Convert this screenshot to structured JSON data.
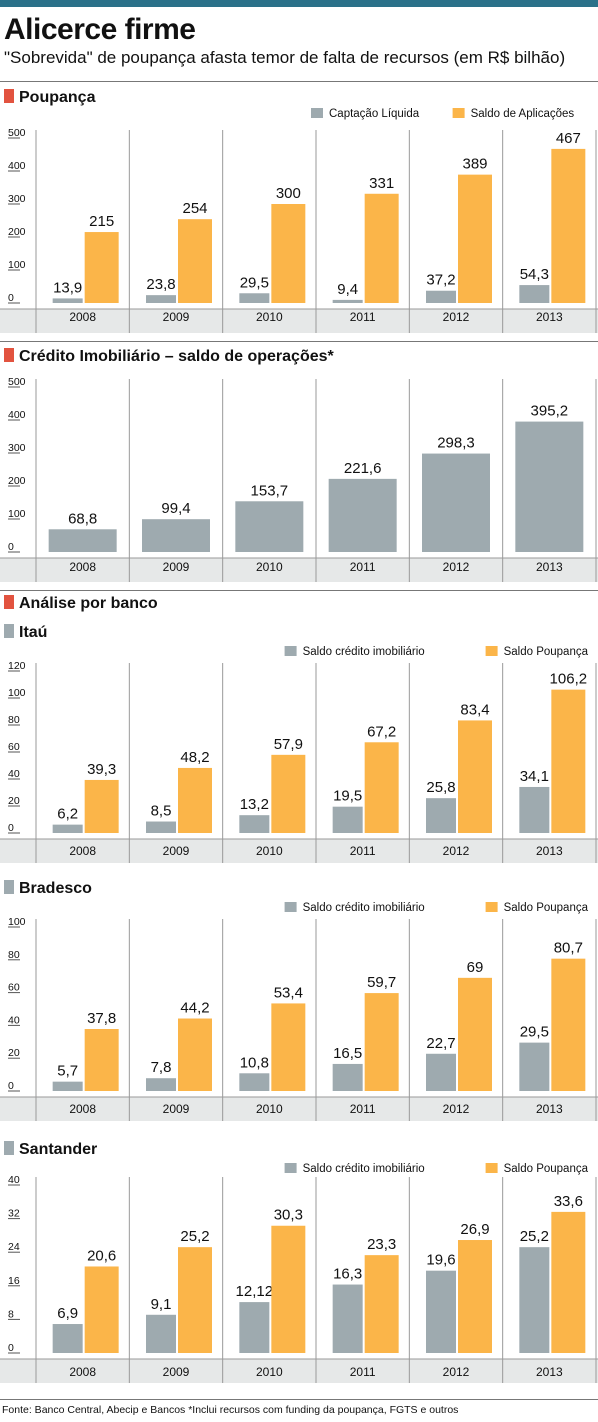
{
  "header": {
    "title": "Alicerce firme",
    "subtitle": "\"Sobrevida\" de poupança afasta temor de falta de recursos (em R$ bilhão)"
  },
  "sections": {
    "poupanca": "Poupança",
    "credito": "Crédito Imobiliário – saldo de operações*",
    "analise": "Análise por banco",
    "itau": "Itaú",
    "bradesco": "Bradesco",
    "santander": "Santander"
  },
  "colors": {
    "gray_series": "#9eaaaf",
    "orange_series": "#fbb549",
    "section_marker": "#e2533f",
    "top_bar": "#2b7189",
    "axis_band": "#e6e8e8"
  },
  "footer": "Fonte: Banco Central, Abecip e Bancos *Inclui recursos com funding da poupança, FGTS e outros",
  "chart_data": [
    {
      "id": "poupanca",
      "type": "bar",
      "categories": [
        "2008",
        "2009",
        "2010",
        "2011",
        "2012",
        "2013"
      ],
      "yticks": [
        0,
        100,
        200,
        300,
        400,
        500
      ],
      "ylim": [
        0,
        500
      ],
      "legend_position": "top-right",
      "series": [
        {
          "name": "Captação Líquida",
          "color": "#9eaaaf",
          "values": [
            13.9,
            23.8,
            29.5,
            9.4,
            37.2,
            54.3
          ],
          "labels": [
            "13,9",
            "23,8",
            "29,5",
            "9,4",
            "37,2",
            "54,3"
          ]
        },
        {
          "name": "Saldo de Aplicações",
          "color": "#fbb549",
          "values": [
            215,
            254,
            300,
            331,
            389,
            467
          ],
          "labels": [
            "215",
            "254",
            "300",
            "331",
            "389",
            "467"
          ]
        }
      ]
    },
    {
      "id": "credito",
      "type": "bar",
      "categories": [
        "2008",
        "2009",
        "2010",
        "2011",
        "2012",
        "2013"
      ],
      "yticks": [
        0,
        100,
        200,
        300,
        400,
        500
      ],
      "ylim": [
        0,
        500
      ],
      "series": [
        {
          "color": "#9eaaaf",
          "values": [
            68.8,
            99.4,
            153.7,
            221.6,
            298.3,
            395.2
          ],
          "labels": [
            "68,8",
            "99,4",
            "153,7",
            "221,6",
            "298,3",
            "395,2"
          ]
        }
      ]
    },
    {
      "id": "itau",
      "type": "bar",
      "categories": [
        "2008",
        "2009",
        "2010",
        "2011",
        "2012",
        "2013"
      ],
      "yticks": [
        0,
        20,
        40,
        60,
        80,
        100,
        120
      ],
      "ylim": [
        0,
        120
      ],
      "legend_position": "top-right",
      "series": [
        {
          "name": "Saldo crédito imobiliário",
          "color": "#9eaaaf",
          "values": [
            6.2,
            8.5,
            13.2,
            19.5,
            25.8,
            34.1
          ],
          "labels": [
            "6,2",
            "8,5",
            "13,2",
            "19,5",
            "25,8",
            "34,1"
          ]
        },
        {
          "name": "Saldo Poupança",
          "color": "#fbb549",
          "values": [
            39.3,
            48.2,
            57.9,
            67.2,
            83.4,
            106.2
          ],
          "labels": [
            "39,3",
            "48,2",
            "57,9",
            "67,2",
            "83,4",
            "106,2"
          ]
        }
      ]
    },
    {
      "id": "bradesco",
      "type": "bar",
      "categories": [
        "2008",
        "2009",
        "2010",
        "2011",
        "2012",
        "2013"
      ],
      "yticks": [
        0,
        20,
        40,
        60,
        80,
        100
      ],
      "ylim": [
        0,
        100
      ],
      "legend_position": "top-right",
      "series": [
        {
          "name": "Saldo crédito imobiliário",
          "color": "#9eaaaf",
          "values": [
            5.7,
            7.8,
            10.8,
            16.5,
            22.7,
            29.5
          ],
          "labels": [
            "5,7",
            "7,8",
            "10,8",
            "16,5",
            "22,7",
            "29,5"
          ]
        },
        {
          "name": "Saldo Poupança",
          "color": "#fbb549",
          "values": [
            37.8,
            44.2,
            53.4,
            59.7,
            69,
            80.7
          ],
          "labels": [
            "37,8",
            "44,2",
            "53,4",
            "59,7",
            "69",
            "80,7"
          ]
        }
      ]
    },
    {
      "id": "santander",
      "type": "bar",
      "categories": [
        "2008",
        "2009",
        "2010",
        "2011",
        "2012",
        "2013"
      ],
      "yticks": [
        0,
        8,
        16,
        24,
        32,
        40
      ],
      "ylim": [
        0,
        40
      ],
      "legend_position": "top-right",
      "series": [
        {
          "name": "Saldo crédito imobiliário",
          "color": "#9eaaaf",
          "values": [
            6.9,
            9.1,
            12.12,
            16.3,
            19.6,
            25.2
          ],
          "labels": [
            "6,9",
            "9,1",
            "12,12",
            "16,3",
            "19,6",
            "25,2"
          ]
        },
        {
          "name": "Saldo Poupança",
          "color": "#fbb549",
          "values": [
            20.6,
            25.2,
            30.3,
            23.3,
            26.9,
            33.6
          ],
          "labels": [
            "20,6",
            "25,2",
            "30,3",
            "23,3",
            "26,9",
            "33,6"
          ]
        }
      ]
    }
  ]
}
